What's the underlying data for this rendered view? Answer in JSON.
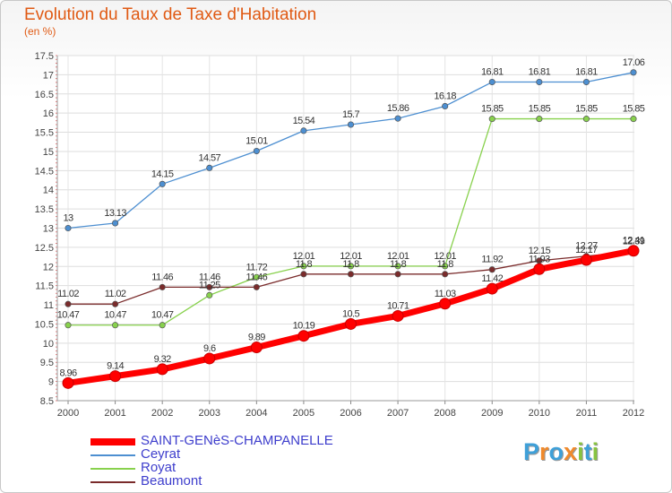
{
  "chart_data": {
    "type": "line",
    "title": "Evolution du Taux de Taxe d'Habitation",
    "subtitle": "(en %)",
    "xlabel": "",
    "ylabel": "",
    "categories": [
      "2000",
      "2001",
      "2002",
      "2003",
      "2004",
      "2005",
      "2006",
      "2007",
      "2008",
      "2009",
      "2010",
      "2011",
      "2012"
    ],
    "ylim": [
      8.5,
      17.5
    ],
    "yticks": [
      "8.5",
      "9",
      "9.5",
      "10",
      "10.5",
      "11",
      "11.5",
      "12",
      "12.5",
      "13",
      "13.5",
      "14",
      "14.5",
      "15",
      "15.5",
      "16",
      "16.5",
      "17",
      "17.5"
    ],
    "grid": true,
    "legend_position": "bottom-left",
    "series": [
      {
        "name": "SAINT-GENèS-CHAMPANELLE",
        "color": "#ff0000",
        "values": [
          8.96,
          9.14,
          9.32,
          9.6,
          9.89,
          10.19,
          10.5,
          10.71,
          11.03,
          11.42,
          11.93,
          12.17,
          12.41
        ],
        "labels": [
          "8.96",
          "9.14",
          "9.32",
          "9.6",
          "9.89",
          "10.19",
          "10.5",
          "10.71",
          "11.03",
          "11.42",
          "11.93",
          "12.17",
          "12.41"
        ]
      },
      {
        "name": "Ceyrat",
        "color": "#4d8fd1",
        "values": [
          13,
          13.13,
          14.15,
          14.57,
          15.01,
          15.54,
          15.7,
          15.86,
          16.18,
          16.81,
          16.81,
          16.81,
          17.06
        ],
        "labels": [
          "13",
          "13.13",
          "14.15",
          "14.57",
          "15.01",
          "15.54",
          "15.7",
          "15.86",
          "16.18",
          "16.81",
          "16.81",
          "16.81",
          "17.06"
        ]
      },
      {
        "name": "Royat",
        "color": "#88d14d",
        "values": [
          10.47,
          10.47,
          10.47,
          11.25,
          11.72,
          12.01,
          12.01,
          12.01,
          12.01,
          15.85,
          15.85,
          15.85,
          15.85
        ],
        "labels": [
          "10.47",
          "10.47",
          "10.47",
          "11.25",
          "11.72",
          "12.01",
          "12.01",
          "12.01",
          "12.01",
          "15.85",
          "15.85",
          "15.85",
          "15.85"
        ]
      },
      {
        "name": "Beaumont",
        "color": "#7a2b2b",
        "values": [
          11.02,
          11.02,
          11.46,
          11.46,
          11.46,
          11.8,
          11.8,
          11.8,
          11.8,
          11.92,
          12.15,
          12.27,
          12.39
        ],
        "labels": [
          "11.02",
          "11.02",
          "11.46",
          "11.46",
          "11.46",
          "11.8",
          "11.8",
          "11.8",
          "11.8",
          "11.92",
          "12.15",
          "12.27",
          "12.39"
        ]
      }
    ]
  },
  "watermark": {
    "text": "Proxiti",
    "colors": [
      "#3fa0d8",
      "#f08a2c",
      "#3fa0d8",
      "#f08a2c",
      "#88c43f",
      "#3fa0d8",
      "#88c43f"
    ]
  }
}
